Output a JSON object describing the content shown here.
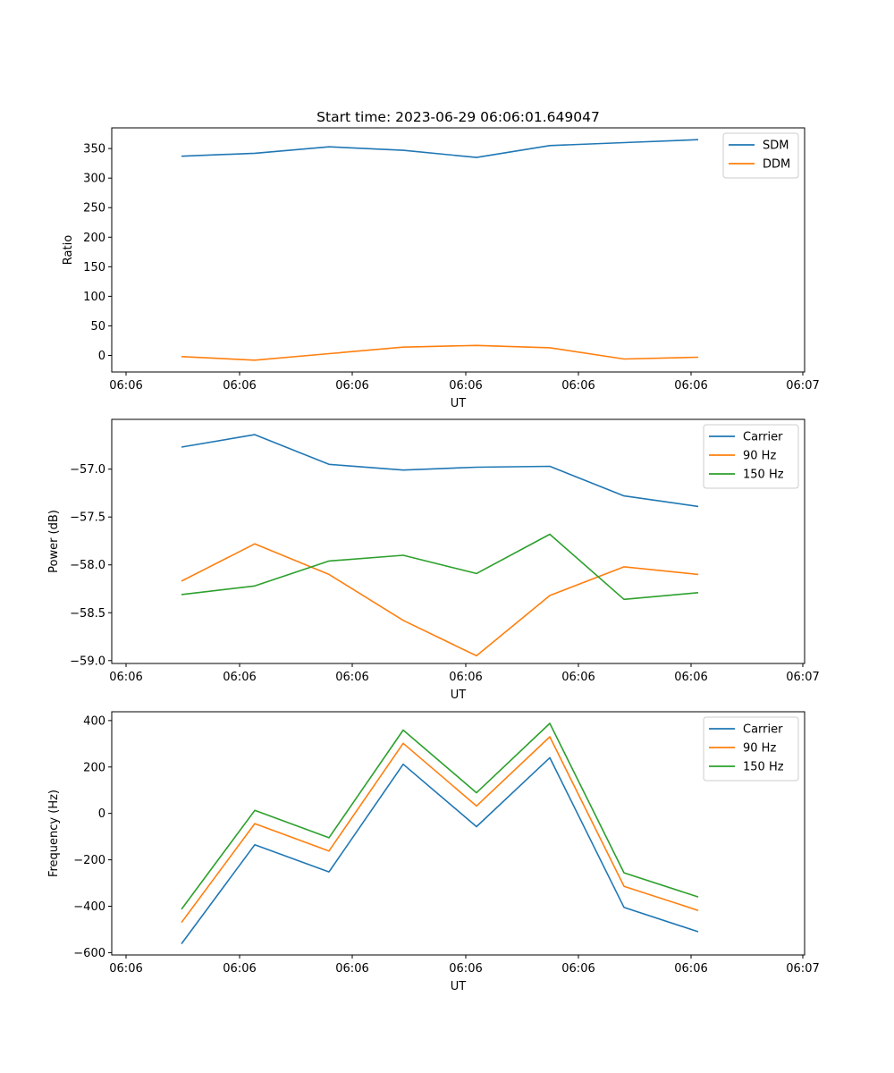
{
  "chart_data": [
    {
      "type": "line",
      "title": "Start time: 2023-06-29 06:06:01.649047",
      "xlabel": "UT",
      "ylabel": "Ratio",
      "x_tick_labels": [
        "06:06",
        "06:06",
        "06:06",
        "06:06",
        "06:06",
        "06:06",
        "06:07"
      ],
      "y_ticks": [
        0,
        50,
        100,
        150,
        200,
        250,
        300,
        350
      ],
      "y_tick_labels": [
        "0",
        "50",
        "100",
        "150",
        "200",
        "250",
        "300",
        "350"
      ],
      "ylim": [
        -28,
        385
      ],
      "x_points": [
        1,
        2,
        3,
        4,
        5,
        6,
        7,
        8
      ],
      "series": [
        {
          "name": "SDM",
          "color": "#1f77b4",
          "values": [
            337,
            342,
            353,
            347,
            335,
            355,
            360,
            365
          ]
        },
        {
          "name": "DDM",
          "color": "#ff7f0e",
          "values": [
            -2,
            -8,
            3,
            14,
            17,
            13,
            -6,
            -3
          ]
        }
      ],
      "legend": "upper right",
      "grid": false
    },
    {
      "type": "line",
      "title": "",
      "xlabel": "UT",
      "ylabel": "Power (dB)",
      "x_tick_labels": [
        "06:06",
        "06:06",
        "06:06",
        "06:06",
        "06:06",
        "06:06",
        "06:07"
      ],
      "y_ticks": [
        -57.0,
        -57.5,
        -58.0,
        -58.5,
        -59.0
      ],
      "y_tick_labels": [
        "−57.0",
        "−57.5",
        "−58.0",
        "−58.5",
        "−59.0"
      ],
      "ylim": [
        -59.03,
        -56.48
      ],
      "x_points": [
        1,
        2,
        3,
        4,
        5,
        6,
        7,
        8
      ],
      "series": [
        {
          "name": "Carrier",
          "color": "#1f77b4",
          "values": [
            -56.77,
            -56.64,
            -56.95,
            -57.01,
            -56.98,
            -56.97,
            -57.28,
            -57.39
          ]
        },
        {
          "name": "90 Hz",
          "color": "#ff7f0e",
          "values": [
            -58.17,
            -57.78,
            -58.1,
            -58.58,
            -58.95,
            -58.32,
            -58.02,
            -58.1
          ]
        },
        {
          "name": "150 Hz",
          "color": "#2ca02c",
          "values": [
            -58.31,
            -58.22,
            -57.96,
            -57.9,
            -58.09,
            -57.68,
            -58.36,
            -58.29
          ]
        }
      ],
      "legend": "upper right",
      "grid": false
    },
    {
      "type": "line",
      "title": "",
      "xlabel": "UT",
      "ylabel": "Frequency (Hz)",
      "x_tick_labels": [
        "06:06",
        "06:06",
        "06:06",
        "06:06",
        "06:06",
        "06:06",
        "06:07"
      ],
      "y_ticks": [
        400,
        200,
        0,
        -200,
        -400,
        -600
      ],
      "y_tick_labels": [
        "400",
        "200",
        "0",
        "−200",
        "−400",
        "−600"
      ],
      "ylim": [
        -610,
        438
      ],
      "x_points": [
        1,
        2,
        3,
        4,
        5,
        6,
        7,
        8
      ],
      "series": [
        {
          "name": "Carrier",
          "color": "#1f77b4",
          "values": [
            -562,
            -135,
            -252,
            212,
            -57,
            240,
            -405,
            -510
          ]
        },
        {
          "name": "90 Hz",
          "color": "#ff7f0e",
          "values": [
            -470,
            -44,
            -162,
            302,
            32,
            330,
            -314,
            -418
          ]
        },
        {
          "name": "150 Hz",
          "color": "#2ca02c",
          "values": [
            -413,
            13,
            -105,
            359,
            89,
            388,
            -256,
            -360
          ]
        }
      ],
      "legend": "upper right",
      "grid": false
    }
  ]
}
